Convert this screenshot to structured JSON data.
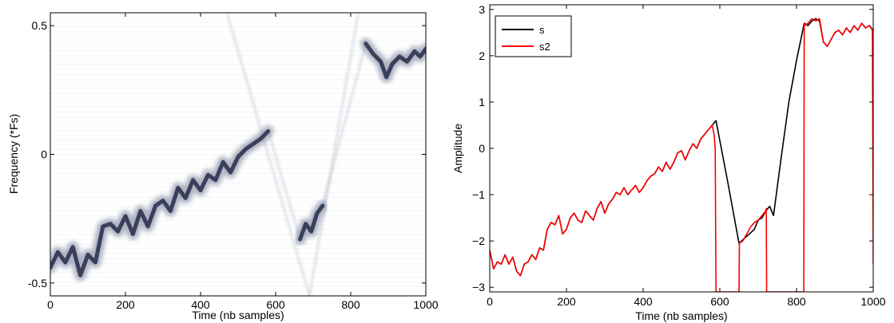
{
  "chart_data": [
    {
      "type": "heatmap",
      "xlabel": "Time (nb samples)",
      "ylabel": "Frequency (*Fs)",
      "xlim": [
        0,
        1000
      ],
      "ylim": [
        -0.55,
        0.55
      ],
      "xticks": [
        0,
        200,
        400,
        600,
        800,
        1000
      ],
      "yticks": [
        -0.5,
        0,
        0.5
      ],
      "ytick_labels": [
        "-0.5",
        "0",
        "0.5"
      ],
      "colormap": [
        "#ffffff",
        "#3a3f5c"
      ],
      "ridge": [
        {
          "x": 0,
          "y": -0.44
        },
        {
          "x": 20,
          "y": -0.38
        },
        {
          "x": 40,
          "y": -0.42
        },
        {
          "x": 60,
          "y": -0.36
        },
        {
          "x": 80,
          "y": -0.47
        },
        {
          "x": 100,
          "y": -0.39
        },
        {
          "x": 120,
          "y": -0.42
        },
        {
          "x": 140,
          "y": -0.28
        },
        {
          "x": 160,
          "y": -0.27
        },
        {
          "x": 180,
          "y": -0.3
        },
        {
          "x": 200,
          "y": -0.24
        },
        {
          "x": 220,
          "y": -0.31
        },
        {
          "x": 240,
          "y": -0.22
        },
        {
          "x": 260,
          "y": -0.28
        },
        {
          "x": 280,
          "y": -0.2
        },
        {
          "x": 300,
          "y": -0.18
        },
        {
          "x": 320,
          "y": -0.22
        },
        {
          "x": 340,
          "y": -0.13
        },
        {
          "x": 360,
          "y": -0.17
        },
        {
          "x": 380,
          "y": -0.1
        },
        {
          "x": 400,
          "y": -0.14
        },
        {
          "x": 420,
          "y": -0.08
        },
        {
          "x": 440,
          "y": -0.1
        },
        {
          "x": 460,
          "y": -0.03
        },
        {
          "x": 480,
          "y": -0.07
        },
        {
          "x": 500,
          "y": -0.01
        },
        {
          "x": 520,
          "y": 0.02
        },
        {
          "x": 540,
          "y": 0.04
        },
        {
          "x": 560,
          "y": 0.06
        },
        {
          "x": 580,
          "y": 0.09
        }
      ],
      "segments": [
        [
          {
            "x": 665,
            "y": -0.33
          },
          {
            "x": 680,
            "y": -0.27
          },
          {
            "x": 695,
            "y": -0.3
          },
          {
            "x": 710,
            "y": -0.23
          },
          {
            "x": 725,
            "y": -0.2
          }
        ],
        [
          {
            "x": 840,
            "y": 0.43
          },
          {
            "x": 860,
            "y": 0.39
          },
          {
            "x": 880,
            "y": 0.36
          },
          {
            "x": 895,
            "y": 0.3
          },
          {
            "x": 910,
            "y": 0.35
          },
          {
            "x": 930,
            "y": 0.38
          },
          {
            "x": 950,
            "y": 0.36
          },
          {
            "x": 970,
            "y": 0.4
          },
          {
            "x": 985,
            "y": 0.38
          },
          {
            "x": 1000,
            "y": 0.41
          }
        ]
      ],
      "faint_chirps": [
        [
          {
            "x": 580,
            "y": 0.09
          },
          {
            "x": 665,
            "y": -0.33
          }
        ],
        [
          {
            "x": 725,
            "y": -0.2
          },
          {
            "x": 840,
            "y": 0.43
          }
        ],
        [
          {
            "x": 470,
            "y": 0.55
          },
          {
            "x": 690,
            "y": -0.55
          }
        ],
        [
          {
            "x": 690,
            "y": -0.55
          },
          {
            "x": 820,
            "y": 0.55
          }
        ]
      ]
    },
    {
      "type": "line",
      "xlabel": "Time (nb samples)",
      "ylabel": "Amplitude",
      "xlim": [
        0,
        1000
      ],
      "ylim": [
        -3.1,
        3.1
      ],
      "xticks": [
        0,
        200,
        400,
        600,
        800,
        1000
      ],
      "yticks": [
        -3,
        -2,
        -1,
        0,
        1,
        2,
        3
      ],
      "ytick_labels": [
        "−3",
        "−2",
        "−1",
        "0",
        "1",
        "2",
        "3"
      ],
      "legend_position": "top-left",
      "series": [
        {
          "name": "s",
          "color": "#000000",
          "x": [
            0,
            10,
            20,
            30,
            40,
            50,
            60,
            70,
            80,
            90,
            100,
            110,
            120,
            130,
            140,
            150,
            160,
            170,
            180,
            190,
            200,
            210,
            220,
            230,
            240,
            250,
            260,
            270,
            280,
            290,
            300,
            310,
            320,
            330,
            340,
            350,
            360,
            370,
            380,
            390,
            400,
            410,
            420,
            430,
            440,
            450,
            460,
            470,
            480,
            490,
            500,
            510,
            520,
            530,
            540,
            550,
            560,
            570,
            580,
            590,
            620,
            650,
            670,
            690,
            700,
            710,
            720,
            730,
            740,
            760,
            780,
            800,
            820,
            830,
            840,
            850,
            860,
            870,
            880,
            890,
            900,
            910,
            920,
            930,
            940,
            950,
            960,
            970,
            980,
            990,
            1000
          ],
          "y": [
            -2.2,
            -2.6,
            -2.45,
            -2.5,
            -2.3,
            -2.5,
            -2.35,
            -2.65,
            -2.75,
            -2.5,
            -2.45,
            -2.3,
            -2.4,
            -2.15,
            -2.2,
            -1.75,
            -1.6,
            -1.65,
            -1.45,
            -1.85,
            -1.75,
            -1.5,
            -1.4,
            -1.55,
            -1.6,
            -1.35,
            -1.45,
            -1.55,
            -1.3,
            -1.15,
            -1.4,
            -1.2,
            -1.1,
            -0.95,
            -1.0,
            -0.85,
            -1.0,
            -0.9,
            -0.8,
            -0.95,
            -0.85,
            -0.7,
            -0.6,
            -0.55,
            -0.4,
            -0.5,
            -0.3,
            -0.45,
            -0.3,
            -0.1,
            -0.05,
            -0.25,
            -0.05,
            0.1,
            0.0,
            0.2,
            0.3,
            0.4,
            0.5,
            0.6,
            -0.7,
            -2.05,
            -1.9,
            -1.75,
            -1.55,
            -1.5,
            -1.35,
            -1.25,
            -1.45,
            -0.2,
            1.0,
            1.9,
            2.7,
            2.65,
            2.75,
            2.8,
            2.75,
            2.3,
            2.2,
            2.35,
            2.5,
            2.55,
            2.45,
            2.6,
            2.5,
            2.65,
            2.55,
            2.7,
            2.6,
            2.65,
            2.55
          ]
        },
        {
          "name": "s2",
          "color": "#ff0000",
          "x": [
            0,
            10,
            20,
            30,
            40,
            50,
            60,
            70,
            80,
            90,
            100,
            110,
            120,
            130,
            140,
            150,
            160,
            170,
            180,
            190,
            200,
            210,
            220,
            230,
            240,
            250,
            260,
            270,
            280,
            290,
            300,
            310,
            320,
            330,
            340,
            350,
            360,
            370,
            380,
            390,
            400,
            410,
            420,
            430,
            440,
            450,
            460,
            470,
            480,
            490,
            500,
            510,
            520,
            530,
            540,
            550,
            560,
            570,
            580,
            585,
            588,
            590,
            640,
            650,
            651,
            660,
            670,
            680,
            690,
            700,
            710,
            720,
            721,
            722,
            760,
            819,
            820,
            821,
            830,
            840,
            850,
            860,
            870,
            880,
            890,
            900,
            910,
            920,
            930,
            940,
            950,
            960,
            970,
            980,
            990,
            998,
            1000
          ],
          "y": [
            -2.2,
            -2.6,
            -2.45,
            -2.5,
            -2.3,
            -2.5,
            -2.35,
            -2.65,
            -2.75,
            -2.5,
            -2.45,
            -2.3,
            -2.4,
            -2.15,
            -2.2,
            -1.75,
            -1.6,
            -1.65,
            -1.45,
            -1.85,
            -1.75,
            -1.5,
            -1.4,
            -1.55,
            -1.6,
            -1.35,
            -1.45,
            -1.55,
            -1.3,
            -1.15,
            -1.4,
            -1.2,
            -1.1,
            -0.95,
            -1.0,
            -0.85,
            -1.0,
            -0.9,
            -0.8,
            -0.95,
            -0.85,
            -0.7,
            -0.6,
            -0.55,
            -0.4,
            -0.5,
            -0.3,
            -0.45,
            -0.3,
            -0.1,
            -0.05,
            -0.25,
            -0.05,
            0.1,
            0.0,
            0.2,
            0.3,
            0.4,
            0.5,
            0.3,
            0.0,
            -3.1,
            -3.1,
            -3.1,
            -2.05,
            -2.0,
            -1.85,
            -1.7,
            -1.6,
            -1.55,
            -1.45,
            -1.35,
            -1.3,
            -3.1,
            -3.1,
            -3.1,
            2.7,
            2.65,
            2.7,
            2.8,
            2.75,
            2.8,
            2.3,
            2.2,
            2.35,
            2.5,
            2.55,
            2.45,
            2.6,
            2.5,
            2.65,
            2.55,
            2.7,
            2.6,
            2.65,
            2.55,
            -2.5
          ]
        }
      ]
    }
  ]
}
